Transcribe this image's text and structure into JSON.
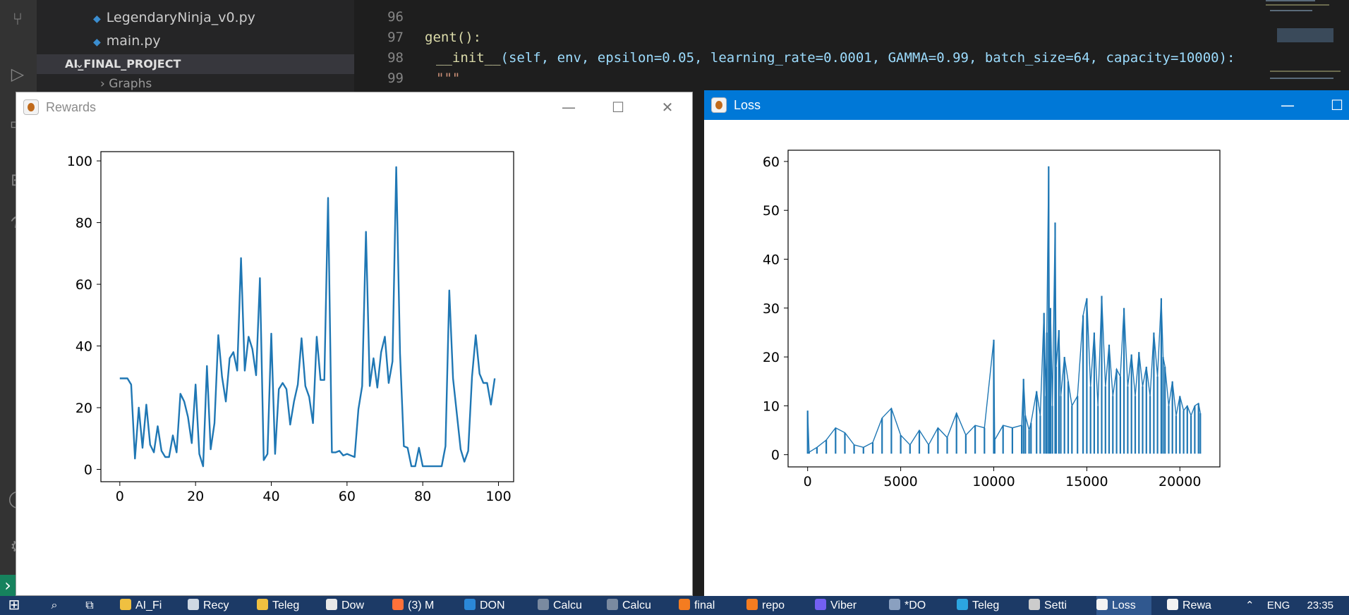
{
  "explorer": {
    "files": [
      "LegendaryNinja_v0.py",
      "main.py"
    ],
    "project": "AI_FINAL_PROJECT",
    "folder_partial": "Graphs"
  },
  "editor": {
    "line_numbers": [
      "96",
      "97",
      "98",
      "99"
    ],
    "line97": "gent():",
    "line98_fn": "__init__",
    "line98_args": "(self, env, epsilon=0.05, learning_rate=0.0001, GAMMA=0.99, batch_size=64, capacity=10000):",
    "line99": "\"\"\""
  },
  "windows": {
    "rewards": {
      "title": "Rewards"
    },
    "loss": {
      "title": "Loss"
    }
  },
  "window_controls": {
    "minimize": "—",
    "maximize": "☐",
    "close": "✕"
  },
  "taskbar": {
    "items": [
      "AI_Fi",
      "Recy",
      "Teleg",
      "Dow",
      "(3) M",
      "DON",
      "Calcu",
      "Calcu",
      "final",
      "repo",
      "Viber",
      "*DO",
      "Teleg",
      "Setti",
      "Loss",
      "Rewa"
    ],
    "language": "ENG",
    "time": "23:35"
  },
  "icons": {
    "start": "windows-start-icon",
    "search": "search-icon",
    "task_view": "task-view-icon",
    "python_file": "python-file-icon",
    "app": "matplotlib-icon"
  },
  "colors": {
    "line": "#1f77b4",
    "taskbar": "#1c3a66",
    "active_title": "#0078d7"
  },
  "chart_data": [
    {
      "type": "line",
      "title": "",
      "xlabel": "",
      "ylabel": "",
      "xlim": [
        -5,
        104
      ],
      "ylim": [
        -4,
        103
      ],
      "xticks": [
        0,
        20,
        40,
        60,
        80,
        100
      ],
      "yticks": [
        0,
        20,
        40,
        60,
        80,
        100
      ],
      "series": [
        {
          "x": [
            0,
            1,
            2,
            3,
            4,
            5,
            6,
            7,
            8,
            9,
            10,
            11,
            12,
            13,
            14,
            15,
            16,
            17,
            18,
            19,
            20,
            21,
            22,
            23,
            24,
            25,
            26,
            27,
            28,
            29,
            30,
            31,
            32,
            33,
            34,
            35,
            36,
            37,
            38,
            39,
            40,
            41,
            42,
            43,
            44,
            45,
            46,
            47,
            48,
            49,
            50,
            51,
            52,
            53,
            54,
            55,
            56,
            57,
            58,
            59,
            60,
            61,
            62,
            63,
            64,
            65,
            66,
            67,
            68,
            69,
            70,
            71,
            72,
            73,
            74,
            75,
            76,
            77,
            78,
            79,
            80,
            81,
            82,
            83,
            84,
            85,
            86,
            87,
            88,
            89,
            90,
            91,
            92,
            93,
            94,
            95,
            96,
            97,
            98,
            99
          ],
          "values": [
            29.5,
            29.5,
            29.5,
            27.5,
            3.5,
            20,
            7,
            21,
            8,
            5.5,
            14,
            6,
            4,
            4,
            11,
            5.5,
            24.5,
            22,
            17,
            8.5,
            27.5,
            5,
            1,
            33.5,
            6.5,
            15,
            43.5,
            30,
            22,
            36,
            38,
            32,
            68.5,
            32,
            43,
            39,
            30.5,
            62,
            3,
            5,
            44,
            5,
            26,
            28,
            26,
            14.5,
            22,
            27.5,
            42.5,
            27,
            23.5,
            15,
            43,
            29,
            29,
            88,
            5.5,
            5.5,
            6,
            4.5,
            5,
            4.5,
            4,
            19.5,
            27,
            77,
            27,
            36,
            26.5,
            38,
            43,
            28,
            35,
            98,
            37.5,
            7.5,
            7,
            1,
            1,
            7,
            1,
            1,
            1,
            1,
            1,
            1,
            7.5,
            58,
            29.5,
            18,
            6.5,
            2.5,
            6,
            30,
            43.5,
            31,
            28,
            28,
            21,
            29.5
          ]
        }
      ]
    },
    {
      "type": "line",
      "title": "",
      "xlabel": "",
      "ylabel": "",
      "xlim": [
        -1050,
        22150
      ],
      "ylim": [
        -2.5,
        62.3
      ],
      "xticks": [
        0,
        5000,
        10000,
        15000,
        20000
      ],
      "yticks": [
        0,
        10,
        20,
        30,
        40,
        50,
        60
      ],
      "series": [
        {
          "x": [
            0,
            80,
            500,
            1000,
            1500,
            2000,
            2500,
            3000,
            3500,
            4000,
            4500,
            5000,
            5500,
            6000,
            6500,
            7000,
            7500,
            8000,
            8500,
            9000,
            9500,
            10000,
            10050,
            10500,
            11000,
            11500,
            11600,
            11700,
            11900,
            12000,
            12300,
            12500,
            12700,
            12800,
            12850,
            12950,
            13000,
            13050,
            13150,
            13300,
            13350,
            13500,
            13600,
            13800,
            14000,
            14200,
            14500,
            14800,
            15000,
            15200,
            15400,
            15600,
            15800,
            16000,
            16200,
            16400,
            16600,
            16800,
            17000,
            17200,
            17400,
            17600,
            17800,
            18000,
            18200,
            18400,
            18600,
            18800,
            19000,
            19100,
            19200,
            19400,
            19600,
            19800,
            20000,
            20200,
            20400,
            20600,
            20800,
            21000,
            21100
          ],
          "values": [
            9,
            0.5,
            1.5,
            3,
            5.5,
            4.5,
            2,
            1.5,
            2.5,
            7.5,
            9.5,
            4,
            2,
            5,
            2,
            5.5,
            3.5,
            8.5,
            4,
            6,
            5.5,
            23.5,
            3,
            6,
            5.5,
            6,
            15.5,
            8,
            5,
            6.5,
            13,
            8,
            29,
            12,
            25,
            59,
            17,
            30,
            10,
            47.5,
            18,
            25.5,
            12,
            20,
            15,
            10,
            12,
            28.5,
            32,
            14,
            25,
            10,
            32.5,
            14,
            22.5,
            12,
            17.5,
            16,
            30,
            14,
            20.5,
            12,
            21,
            14,
            18,
            12,
            25,
            16,
            32,
            20,
            18,
            10,
            15,
            8,
            12,
            9,
            10,
            8,
            10,
            10.5,
            8.5
          ]
        }
      ]
    }
  ]
}
